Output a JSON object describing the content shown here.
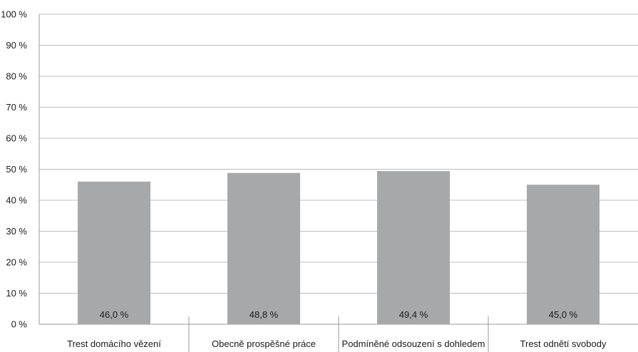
{
  "chart_data": {
    "type": "bar",
    "title": "",
    "xlabel": "",
    "ylabel": "",
    "categories": [
      "Trest domácího vězení",
      "Obecně prospěšné práce",
      "Podmíněné odsouzení s dohledem",
      "Trest odnětí svobody"
    ],
    "values": [
      46.0,
      48.8,
      49.4,
      45.0
    ],
    "data_labels": [
      "46,0 %",
      "48,8 %",
      "49,4 %",
      "45,0 %"
    ],
    "ylim": [
      0,
      100
    ],
    "yticks": [
      0,
      10,
      20,
      30,
      40,
      50,
      60,
      70,
      80,
      90,
      100
    ],
    "ytick_labels": [
      "0 %",
      "10 %",
      "20 %",
      "30 %",
      "40 %",
      "50 %",
      "60 %",
      "70 %",
      "80 %",
      "90 %",
      "100 %"
    ],
    "grid": true,
    "legend": "none",
    "colors": {
      "bar": "#a7a8aa",
      "grid": "#bdbdbd",
      "axis": "#9a9a9a",
      "text": "#1a1a1a"
    }
  }
}
